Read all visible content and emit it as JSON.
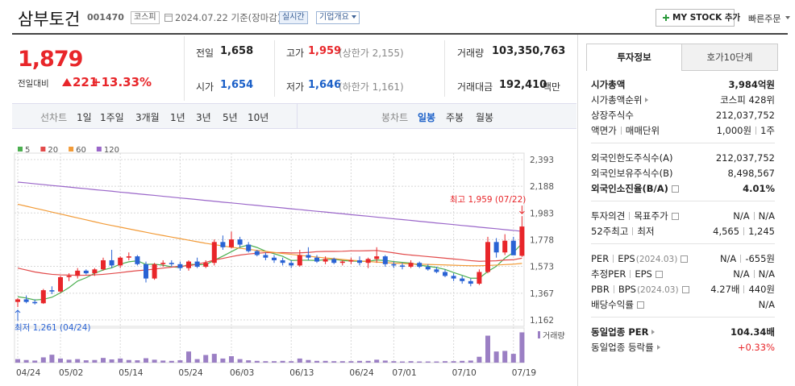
{
  "header": {
    "title": "삼부토건",
    "code": "001470",
    "market": "코스피",
    "date": "2024.07.22 기준(장마감)",
    "realtime": "실시간",
    "overview": "기업개요",
    "my_stock": "MY STOCK 추가",
    "quick_order": "빠른주문"
  },
  "quote": {
    "price": "1,879",
    "price_color": "#e8262a",
    "change_label": "전일대비",
    "change": "221",
    "change_rate": "+13.33%",
    "rows": [
      [
        {
          "label": "전일",
          "value": "1,658"
        },
        {
          "label": "고가",
          "value": "1,959",
          "color": "#e8262a",
          "sub": "(상한가 2,155)"
        },
        {
          "label": "거래량",
          "value": "103,350,763"
        }
      ],
      [
        {
          "label": "시가",
          "value": "1,654",
          "color": "#1a5fc8"
        },
        {
          "label": "저가",
          "value": "1,646",
          "color": "#1a5fc8",
          "sub": "(하한가 1,161)"
        },
        {
          "label": "거래대금",
          "value": "192,410",
          "unit": "백만"
        }
      ]
    ]
  },
  "periods": {
    "line_label": "선차트",
    "line": [
      "1일",
      "1주일",
      "3개월",
      "1년",
      "3년",
      "5년",
      "10년"
    ],
    "candle_label": "봉차트",
    "candle": [
      "일봉",
      "주봉",
      "월봉"
    ],
    "active_index": 0
  },
  "invest": {
    "tabs": [
      "투자정보",
      "호가10단계"
    ],
    "groups": [
      [
        {
          "labels": [
            "시가총액"
          ],
          "values": [
            "3,984억원"
          ],
          "bold": true
        },
        {
          "labels": [
            "시가총액순위"
          ],
          "values": [
            "코스피 428위"
          ],
          "link": true
        },
        {
          "labels": [
            "상장주식수"
          ],
          "values": [
            "212,037,752"
          ]
        },
        {
          "labels": [
            "액면가",
            "매매단위"
          ],
          "values": [
            "1,000원",
            "1주"
          ]
        }
      ],
      [
        {
          "labels": [
            "외국인한도주식수(A)"
          ],
          "values": [
            "212,037,752"
          ]
        },
        {
          "labels": [
            "외국인보유주식수(B)"
          ],
          "values": [
            "8,498,567"
          ]
        },
        {
          "labels": [
            "외국인소진율(B/A)"
          ],
          "values": [
            "4.01%"
          ],
          "bold": true,
          "info": true
        }
      ],
      [
        {
          "labels": [
            "투자의견",
            "목표주가"
          ],
          "values": [
            "N/A",
            "N/A"
          ],
          "info": true
        },
        {
          "labels": [
            "52주최고",
            "최저"
          ],
          "values": [
            "4,565",
            "1,245"
          ]
        }
      ],
      [
        {
          "labels": [
            "PER",
            "EPS"
          ],
          "note": "(2024.03)",
          "values": [
            "N/A",
            "-655원"
          ],
          "info": true
        },
        {
          "labels": [
            "추정PER",
            "EPS"
          ],
          "values": [
            "N/A",
            "N/A"
          ],
          "info": true
        },
        {
          "labels": [
            "PBR",
            "BPS"
          ],
          "note": "(2024.03)",
          "values": [
            "4.27배",
            "440원"
          ],
          "info": true
        },
        {
          "labels": [
            "배당수익률"
          ],
          "values": [
            "N/A"
          ],
          "info": true
        }
      ],
      [
        {
          "labels": [
            "동일업종 PER"
          ],
          "values": [
            "104.34배"
          ],
          "bold": true,
          "link": true
        },
        {
          "labels": [
            "동일업종 등락률"
          ],
          "values": [
            "+0.33%"
          ],
          "link": true,
          "color": "#e8262a"
        }
      ]
    ]
  },
  "chart_data": {
    "type": "candlestick",
    "categories": [
      "04/24",
      null,
      null,
      null,
      null,
      "05/02",
      null,
      null,
      null,
      null,
      null,
      null,
      "05/14",
      null,
      null,
      null,
      null,
      null,
      null,
      "05/24",
      null,
      null,
      null,
      null,
      null,
      "06/03",
      null,
      null,
      null,
      null,
      null,
      null,
      "06/13",
      null,
      null,
      null,
      null,
      null,
      null,
      "06/24",
      null,
      null,
      null,
      null,
      "07/01",
      null,
      null,
      null,
      null,
      null,
      null,
      "07/10",
      null,
      null,
      null,
      null,
      null,
      null,
      "07/19",
      null
    ],
    "open": [
      1300,
      1320,
      1300,
      1290,
      1390,
      1380,
      1490,
      1500,
      1540,
      1520,
      1550,
      1620,
      1580,
      1640,
      1650,
      1590,
      1480,
      1590,
      1600,
      1590,
      1560,
      1610,
      1570,
      1600,
      1760,
      1720,
      1780,
      1740,
      1690,
      1660,
      1640,
      1620,
      1600,
      1580,
      1660,
      1640,
      1610,
      1630,
      1600,
      1610,
      1620,
      1600,
      1630,
      1650,
      1590,
      1580,
      1570,
      1600,
      1570,
      1550,
      1530,
      1500,
      1480,
      1460,
      1440,
      1530,
      1760,
      1680,
      1770,
      1654
    ],
    "high": [
      1330,
      1350,
      1320,
      1400,
      1420,
      1500,
      1520,
      1560,
      1550,
      1560,
      1640,
      1700,
      1650,
      1680,
      1660,
      1610,
      1600,
      1620,
      1620,
      1610,
      1620,
      1640,
      1620,
      1780,
      1810,
      1840,
      1800,
      1760,
      1700,
      1680,
      1660,
      1640,
      1620,
      1700,
      1720,
      1660,
      1650,
      1640,
      1620,
      1640,
      1650,
      1640,
      1720,
      1660,
      1610,
      1600,
      1620,
      1610,
      1590,
      1570,
      1550,
      1520,
      1500,
      1480,
      1550,
      1800,
      1790,
      1820,
      1800,
      1959
    ],
    "low": [
      1261,
      1290,
      1280,
      1285,
      1360,
      1370,
      1460,
      1480,
      1510,
      1500,
      1540,
      1560,
      1560,
      1620,
      1580,
      1450,
      1470,
      1570,
      1570,
      1540,
      1540,
      1560,
      1560,
      1580,
      1700,
      1710,
      1720,
      1680,
      1650,
      1620,
      1600,
      1580,
      1560,
      1570,
      1620,
      1600,
      1590,
      1590,
      1580,
      1590,
      1580,
      1560,
      1600,
      1570,
      1560,
      1550,
      1560,
      1560,
      1540,
      1520,
      1490,
      1460,
      1440,
      1420,
      1430,
      1520,
      1640,
      1660,
      1660,
      1646
    ],
    "close": [
      1320,
      1300,
      1290,
      1390,
      1380,
      1490,
      1500,
      1540,
      1520,
      1550,
      1620,
      1580,
      1640,
      1650,
      1590,
      1480,
      1590,
      1600,
      1590,
      1560,
      1610,
      1570,
      1600,
      1760,
      1720,
      1780,
      1740,
      1690,
      1660,
      1640,
      1620,
      1600,
      1580,
      1660,
      1640,
      1610,
      1630,
      1600,
      1610,
      1620,
      1600,
      1630,
      1650,
      1590,
      1580,
      1570,
      1600,
      1570,
      1550,
      1530,
      1500,
      1480,
      1460,
      1440,
      1530,
      1760,
      1680,
      1770,
      1658,
      1879
    ],
    "up_color": "#e8262a",
    "down_color": "#2a63d4",
    "series": [
      {
        "name": "5",
        "color": "#4caf50",
        "values": [
          1340,
          1330,
          1315,
          1320,
          1336,
          1370,
          1410,
          1460,
          1486,
          1520,
          1546,
          1562,
          1590,
          1608,
          1616,
          1588,
          1590,
          1582,
          1570,
          1564,
          1590,
          1586,
          1586,
          1620,
          1652,
          1686,
          1720,
          1738,
          1718,
          1690,
          1670,
          1650,
          1618,
          1620,
          1620,
          1618,
          1624,
          1628,
          1618,
          1614,
          1612,
          1612,
          1622,
          1618,
          1610,
          1604,
          1598,
          1582,
          1574,
          1564,
          1550,
          1526,
          1504,
          1482,
          1482,
          1534,
          1574,
          1636,
          1680,
          1749
        ]
      },
      {
        "name": "20",
        "color": "#e24a4a",
        "values": [
          1560,
          1545,
          1530,
          1520,
          1512,
          1508,
          1506,
          1505,
          1505,
          1508,
          1512,
          1518,
          1525,
          1533,
          1540,
          1545,
          1552,
          1560,
          1567,
          1575,
          1577,
          1590,
          1604,
          1622,
          1634,
          1648,
          1660,
          1668,
          1674,
          1678,
          1678,
          1679,
          1676,
          1677,
          1680,
          1686,
          1688,
          1688,
          1689,
          1692,
          1692,
          1693,
          1695,
          1686,
          1677,
          1667,
          1660,
          1654,
          1648,
          1642,
          1636,
          1630,
          1624,
          1617,
          1612,
          1614,
          1616,
          1622,
          1624,
          1636
        ]
      },
      {
        "name": "60",
        "color": "#f29b38",
        "values": [
          2050,
          2035,
          2020,
          2005,
          1990,
          1975,
          1960,
          1945,
          1930,
          1915,
          1900,
          1887,
          1874,
          1861,
          1848,
          1835,
          1822,
          1810,
          1798,
          1786,
          1774,
          1762,
          1750,
          1740,
          1730,
          1720,
          1712,
          1704,
          1696,
          1688,
          1680,
          1672,
          1665,
          1658,
          1651,
          1644,
          1638,
          1632,
          1626,
          1620,
          1615,
          1610,
          1606,
          1602,
          1598,
          1595,
          1592,
          1590,
          1588,
          1586,
          1584,
          1582,
          1580,
          1578,
          1578,
          1580,
          1583,
          1587,
          1590,
          1596
        ]
      },
      {
        "name": "120",
        "color": "#9a66c9",
        "values": [
          2220,
          2214,
          2207,
          2201,
          2194,
          2188,
          2182,
          2175,
          2169,
          2162,
          2156,
          2150,
          2143,
          2137,
          2130,
          2124,
          2118,
          2111,
          2105,
          2098,
          2092,
          2086,
          2079,
          2073,
          2066,
          2060,
          2054,
          2047,
          2041,
          2034,
          2028,
          2022,
          2015,
          2009,
          2002,
          1996,
          1990,
          1983,
          1977,
          1970,
          1964,
          1958,
          1951,
          1945,
          1938,
          1932,
          1926,
          1919,
          1913,
          1906,
          1900,
          1894,
          1887,
          1881,
          1874,
          1868,
          1862,
          1855,
          1849,
          1842
        ]
      }
    ],
    "volume": [
      12000000,
      9000000,
      7000000,
      18000000,
      27000000,
      14000000,
      10000000,
      12000000,
      8000000,
      9000000,
      16000000,
      11000000,
      14000000,
      9000000,
      8000000,
      15000000,
      10000000,
      7000000,
      6000000,
      8000000,
      38000000,
      12000000,
      26000000,
      30000000,
      14000000,
      22000000,
      12000000,
      8000000,
      6000000,
      5000000,
      5000000,
      6000000,
      5000000,
      14000000,
      9000000,
      6000000,
      6000000,
      5000000,
      5000000,
      5000000,
      6000000,
      6000000,
      10000000,
      7000000,
      5000000,
      4000000,
      5000000,
      4000000,
      4000000,
      4000000,
      5000000,
      5000000,
      6000000,
      7000000,
      20000000,
      92000000,
      38000000,
      40000000,
      30000000,
      103350763
    ],
    "volume_color": "#9b7fc4",
    "volume_label": "거래량",
    "volume_ylim": [
      0,
      110000000
    ],
    "ylim": [
      1162,
      2393
    ],
    "yticks": [
      {
        "value": 2393,
        "label": "2,393"
      },
      {
        "value": 2188,
        "label": "2,188"
      },
      {
        "value": 1983,
        "label": "1,983"
      },
      {
        "value": 1778,
        "label": "1,778"
      },
      {
        "value": 1573,
        "label": "1,573"
      },
      {
        "value": 1367,
        "label": "1,367"
      },
      {
        "value": 1162,
        "label": "1,162"
      }
    ],
    "grid": true,
    "annotations": [
      {
        "text": "최고 1,959 (07/22)"
      },
      {
        "text": "최저 1,261 (04/24)"
      }
    ]
  }
}
